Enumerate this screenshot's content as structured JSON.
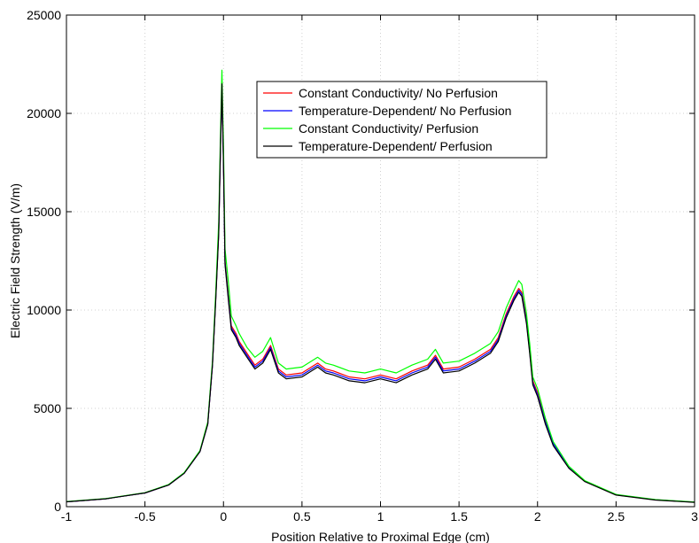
{
  "chart_data": {
    "type": "line",
    "title": "",
    "xlabel": "Position Relative to Proximal Edge (cm)",
    "ylabel": "Electric Field Strength (V/m)",
    "xlim": [
      -1,
      3
    ],
    "ylim": [
      0,
      25000
    ],
    "xticks": [
      "-1",
      "-0.5",
      "0",
      "0.5",
      "1",
      "1.5",
      "2",
      "2.5",
      "3"
    ],
    "yticks": [
      "0",
      "5000",
      "10000",
      "15000",
      "20000",
      "25000"
    ],
    "grid": true,
    "legend_position": "top-center",
    "series": [
      {
        "name": "Constant Conductivity/ No Perfusion",
        "color": "#ff0000",
        "x": [
          -1,
          -0.75,
          -0.5,
          -0.35,
          -0.25,
          -0.15,
          -0.1,
          -0.07,
          -0.05,
          -0.03,
          -0.02,
          -0.01,
          0,
          0.01,
          0.03,
          0.05,
          0.08,
          0.1,
          0.15,
          0.2,
          0.25,
          0.3,
          0.35,
          0.4,
          0.5,
          0.6,
          0.65,
          0.7,
          0.8,
          0.9,
          1,
          1.1,
          1.2,
          1.3,
          1.35,
          1.4,
          1.5,
          1.6,
          1.7,
          1.75,
          1.8,
          1.85,
          1.88,
          1.9,
          1.93,
          1.95,
          1.97,
          2,
          2.05,
          2.1,
          2.2,
          2.3,
          2.5,
          2.75,
          3
        ],
        "y": [
          250,
          400,
          700,
          1100,
          1700,
          2800,
          4200,
          7200,
          10500,
          14000,
          18000,
          21600,
          17500,
          12500,
          10800,
          9200,
          8800,
          8400,
          7800,
          7200,
          7500,
          8200,
          7000,
          6700,
          6800,
          7300,
          7000,
          6900,
          6600,
          6500,
          6700,
          6500,
          6900,
          7200,
          7700,
          7000,
          7100,
          7500,
          8000,
          8600,
          9800,
          10700,
          11100,
          10900,
          9500,
          8000,
          6400,
          5800,
          4400,
          3200,
          2000,
          1300,
          600,
          350,
          230
        ]
      },
      {
        "name": "Temperature-Dependent/ No Perfusion",
        "color": "#0000ff",
        "x": [
          -1,
          -0.75,
          -0.5,
          -0.35,
          -0.25,
          -0.15,
          -0.1,
          -0.07,
          -0.05,
          -0.03,
          -0.02,
          -0.01,
          0,
          0.01,
          0.03,
          0.05,
          0.08,
          0.1,
          0.15,
          0.2,
          0.25,
          0.3,
          0.35,
          0.4,
          0.5,
          0.6,
          0.65,
          0.7,
          0.8,
          0.9,
          1,
          1.1,
          1.2,
          1.3,
          1.35,
          1.4,
          1.5,
          1.6,
          1.7,
          1.75,
          1.8,
          1.85,
          1.88,
          1.9,
          1.93,
          1.95,
          1.97,
          2,
          2.05,
          2.1,
          2.2,
          2.3,
          2.5,
          2.75,
          3
        ],
        "y": [
          250,
          400,
          700,
          1100,
          1700,
          2800,
          4200,
          7200,
          10500,
          14000,
          18000,
          21500,
          17400,
          12400,
          10700,
          9100,
          8700,
          8300,
          7700,
          7100,
          7400,
          8100,
          6900,
          6600,
          6700,
          7200,
          6900,
          6800,
          6500,
          6400,
          6600,
          6400,
          6800,
          7100,
          7600,
          6900,
          7000,
          7400,
          7900,
          8500,
          9700,
          10600,
          11000,
          10800,
          9400,
          7900,
          6300,
          5700,
          4300,
          3200,
          2000,
          1300,
          600,
          350,
          230
        ]
      },
      {
        "name": "Constant Conductivity/ Perfusion",
        "color": "#00ff00",
        "x": [
          -1,
          -0.75,
          -0.5,
          -0.35,
          -0.25,
          -0.15,
          -0.1,
          -0.07,
          -0.05,
          -0.03,
          -0.02,
          -0.01,
          0,
          0.01,
          0.03,
          0.05,
          0.08,
          0.1,
          0.15,
          0.2,
          0.25,
          0.3,
          0.35,
          0.4,
          0.5,
          0.6,
          0.65,
          0.7,
          0.8,
          0.9,
          1,
          1.1,
          1.2,
          1.3,
          1.35,
          1.4,
          1.5,
          1.6,
          1.7,
          1.75,
          1.8,
          1.85,
          1.88,
          1.9,
          1.93,
          1.95,
          1.97,
          2,
          2.05,
          2.1,
          2.2,
          2.3,
          2.5,
          2.75,
          3
        ],
        "y": [
          260,
          410,
          710,
          1120,
          1730,
          2850,
          4300,
          7400,
          10800,
          14500,
          18600,
          22200,
          18200,
          13100,
          11500,
          9700,
          9200,
          8800,
          8100,
          7600,
          7900,
          8600,
          7300,
          7000,
          7100,
          7600,
          7300,
          7200,
          6900,
          6800,
          7000,
          6800,
          7200,
          7500,
          8000,
          7300,
          7400,
          7800,
          8300,
          8900,
          10100,
          11000,
          11500,
          11300,
          9800,
          8300,
          6600,
          6000,
          4500,
          3300,
          2050,
          1330,
          620,
          360,
          240
        ]
      },
      {
        "name": "Temperature-Dependent/ Perfusion",
        "color": "#000000",
        "x": [
          -1,
          -0.75,
          -0.5,
          -0.35,
          -0.25,
          -0.15,
          -0.1,
          -0.07,
          -0.05,
          -0.03,
          -0.02,
          -0.01,
          0,
          0.01,
          0.03,
          0.05,
          0.08,
          0.1,
          0.15,
          0.2,
          0.25,
          0.3,
          0.35,
          0.4,
          0.5,
          0.6,
          0.65,
          0.7,
          0.8,
          0.9,
          1,
          1.1,
          1.2,
          1.3,
          1.35,
          1.4,
          1.5,
          1.6,
          1.7,
          1.75,
          1.8,
          1.85,
          1.88,
          1.9,
          1.93,
          1.95,
          1.97,
          2,
          2.05,
          2.1,
          2.2,
          2.3,
          2.5,
          2.75,
          3
        ],
        "y": [
          250,
          400,
          700,
          1100,
          1700,
          2800,
          4200,
          7200,
          10400,
          13900,
          17900,
          21500,
          17300,
          12300,
          10600,
          9000,
          8600,
          8200,
          7600,
          7000,
          7300,
          8000,
          6800,
          6500,
          6600,
          7100,
          6800,
          6700,
          6400,
          6300,
          6500,
          6300,
          6700,
          7000,
          7500,
          6800,
          6900,
          7300,
          7800,
          8400,
          9600,
          10500,
          10900,
          10700,
          9300,
          7800,
          6200,
          5600,
          4200,
          3100,
          1950,
          1280,
          590,
          340,
          220
        ]
      }
    ]
  }
}
